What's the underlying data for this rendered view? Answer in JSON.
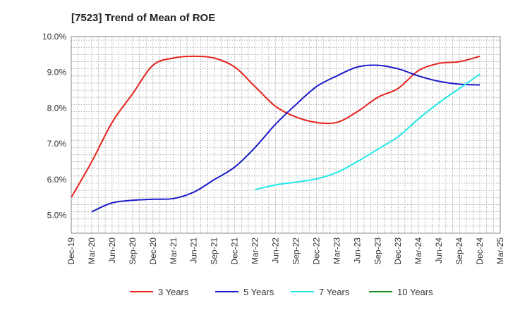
{
  "chart_data": {
    "type": "line",
    "title": "[7523]  Trend of Mean of ROE",
    "xlabel": "",
    "ylabel": "",
    "x": [
      "Dec-19",
      "Mar-20",
      "Jun-20",
      "Sep-20",
      "Dec-20",
      "Mar-21",
      "Jun-21",
      "Sep-21",
      "Dec-21",
      "Mar-22",
      "Jun-22",
      "Sep-22",
      "Dec-22",
      "Mar-23",
      "Jun-23",
      "Sep-23",
      "Dec-23",
      "Mar-24",
      "Jun-24",
      "Sep-24",
      "Dec-24",
      "Mar-25"
    ],
    "ylim": [
      4.5,
      10.0
    ],
    "yticks": [
      5.0,
      6.0,
      7.0,
      8.0,
      9.0,
      10.0
    ],
    "ytick_labels": [
      "5.0%",
      "6.0%",
      "7.0%",
      "8.0%",
      "9.0%",
      "10.0%"
    ],
    "grid": true,
    "legend_position": "bottom",
    "series": [
      {
        "name": "3 Years",
        "color": "#e8211b",
        "values": [
          5.5,
          6.5,
          7.6,
          8.4,
          9.2,
          9.4,
          9.45,
          9.4,
          9.15,
          8.6,
          8.05,
          7.75,
          7.6,
          7.6,
          7.9,
          8.3,
          8.55,
          9.05,
          9.25,
          9.3,
          9.45,
          null
        ]
      },
      {
        "name": "5 Years",
        "color": "#1a1acc",
        "values": [
          null,
          5.1,
          5.35,
          5.42,
          5.45,
          5.47,
          5.65,
          6.0,
          6.35,
          6.9,
          7.55,
          8.1,
          8.6,
          8.9,
          9.15,
          9.2,
          9.1,
          8.9,
          8.75,
          8.67,
          8.65,
          null
        ]
      },
      {
        "name": "7 Years",
        "color": "#22e8e8",
        "values": [
          null,
          null,
          null,
          null,
          null,
          null,
          null,
          null,
          null,
          5.72,
          5.85,
          5.93,
          6.02,
          6.2,
          6.5,
          6.85,
          7.2,
          7.7,
          8.15,
          8.55,
          8.95,
          null
        ]
      },
      {
        "name": "10 Years",
        "color": "#1a8c1a",
        "values": [
          null,
          null,
          null,
          null,
          null,
          null,
          null,
          null,
          null,
          null,
          null,
          null,
          null,
          null,
          null,
          null,
          null,
          null,
          null,
          null,
          null,
          null
        ]
      }
    ]
  }
}
